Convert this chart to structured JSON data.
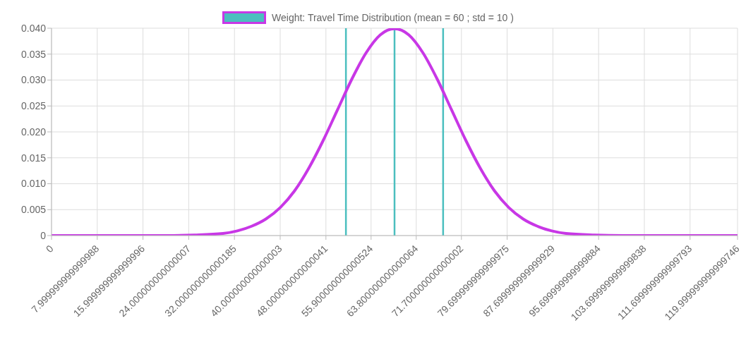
{
  "chart_data": {
    "type": "line",
    "x": [
      0,
      10,
      20,
      25,
      30,
      32.5,
      35,
      37.5,
      40,
      42.5,
      45,
      47.5,
      50,
      52.5,
      55,
      57.5,
      60,
      62.5,
      65,
      67.5,
      70,
      72.5,
      75,
      77.5,
      80,
      82.5,
      85,
      87.5,
      90,
      95,
      100,
      110,
      120
    ],
    "series": [
      {
        "name": "Weight: Travel Time Distribution (mean = 60 ; std = 10 )",
        "color": "#c837e6",
        "values": [
          0,
          0,
          0,
          0.0001,
          0.0004,
          0.0009,
          0.0018,
          0.0032,
          0.0054,
          0.0086,
          0.013,
          0.0183,
          0.0242,
          0.0301,
          0.0352,
          0.0387,
          0.0399,
          0.0387,
          0.0352,
          0.0301,
          0.0242,
          0.0183,
          0.013,
          0.0086,
          0.0054,
          0.0032,
          0.0018,
          0.0009,
          0.0004,
          0.0001,
          0,
          0,
          0
        ]
      }
    ],
    "xlim": [
      0,
      120
    ],
    "xticks": [
      0,
      {
        "value": 8,
        "label": "7.999999999999988"
      },
      {
        "value": 16,
        "label": "15.999999999999996"
      },
      {
        "value": 24,
        "label": "24.000000000000007"
      },
      {
        "value": 32,
        "label": "32.000000000000185"
      },
      {
        "value": 40,
        "label": "40.000000000000003"
      },
      {
        "value": 48,
        "label": "48.000000000000041"
      },
      {
        "value": 55.9,
        "label": "55.900000000000524"
      },
      {
        "value": 63.8,
        "label": "63.800000000000064"
      },
      {
        "value": 71.7,
        "label": "71.700000000000002"
      },
      {
        "value": 79.7,
        "label": "79.699999999999975"
      },
      {
        "value": 87.7,
        "label": "87.699999999999929"
      },
      {
        "value": 95.7,
        "label": "95.699999999999884"
      },
      {
        "value": 103.7,
        "label": "103.699999999999838"
      },
      {
        "value": 111.7,
        "label": "111.699999999999793"
      },
      {
        "value": 120,
        "label": "119.999999999999746"
      }
    ],
    "ylim": [
      0,
      0.04
    ],
    "yticks": [
      0,
      0.005,
      {
        "value": 0.01,
        "label": "0.010"
      },
      0.015,
      {
        "value": 0.02,
        "label": "0.020"
      },
      0.025,
      {
        "value": 0.03,
        "label": "0.030"
      },
      0.035,
      {
        "value": 0.04,
        "label": "0.040"
      }
    ],
    "ref_lines": [
      {
        "axis": "x",
        "value": 51.5,
        "color": "#4bbfbf"
      },
      {
        "axis": "x",
        "value": 60,
        "color": "#4bbfbf"
      },
      {
        "axis": "x",
        "value": 68.5,
        "color": "#4bbfbf"
      }
    ],
    "grid": true,
    "legend": "top",
    "marker": "none",
    "line_style": "solid"
  }
}
